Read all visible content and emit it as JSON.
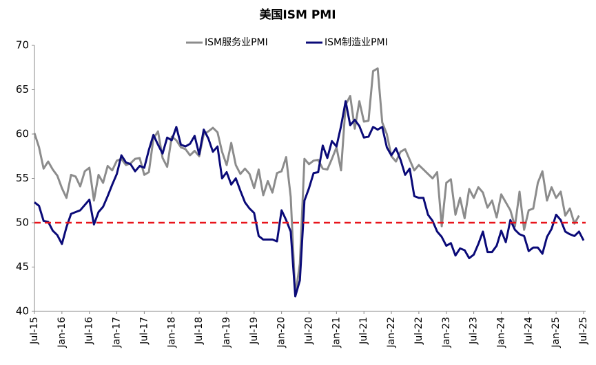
{
  "chart_data": {
    "type": "line",
    "title": "美国ISM PMI",
    "categories": [
      "Jul-15",
      null,
      null,
      null,
      null,
      null,
      "Jan-16",
      null,
      null,
      null,
      null,
      null,
      "Jul-16",
      null,
      null,
      null,
      null,
      null,
      "Jan-17",
      null,
      null,
      null,
      null,
      null,
      "Jul-17",
      null,
      null,
      null,
      null,
      null,
      "Jan-18",
      null,
      null,
      null,
      null,
      null,
      "Jul-18",
      null,
      null,
      null,
      null,
      null,
      "Jan-19",
      null,
      null,
      null,
      null,
      null,
      "Jul-19",
      null,
      null,
      null,
      null,
      null,
      "Jan-20",
      null,
      null,
      null,
      null,
      null,
      "Jul-20",
      null,
      null,
      null,
      null,
      null,
      "Jan-21",
      null,
      null,
      null,
      null,
      null,
      "Jul-21",
      null,
      null,
      null,
      null,
      null,
      "Jan-22",
      null,
      null,
      null,
      null,
      null,
      "Jul-22",
      null,
      null,
      null,
      null,
      null,
      "Jan-23",
      null,
      null,
      null,
      null,
      null,
      "Jul-23",
      null,
      null,
      null,
      null,
      null,
      "Jan-24",
      null,
      null,
      null,
      null,
      null,
      "Jul-24",
      null,
      null,
      null,
      null,
      null,
      "Jan-25",
      null,
      null,
      null,
      null,
      null,
      "Jul-25"
    ],
    "series": [
      {
        "name": "ISM服务业PMI",
        "color": "#8c8c8c",
        "values": [
          60.1,
          58.5,
          56.1,
          56.9,
          56.0,
          55.3,
          53.9,
          52.8,
          55.4,
          55.2,
          54.1,
          55.8,
          56.2,
          52.5,
          55.4,
          54.5,
          56.4,
          55.9,
          57.0,
          57.2,
          56.5,
          56.7,
          57.2,
          57.3,
          55.4,
          55.7,
          59.5,
          60.3,
          57.3,
          56.3,
          59.7,
          59.3,
          58.5,
          58.3,
          57.6,
          58.1,
          57.5,
          60.0,
          60.3,
          60.7,
          60.2,
          58.0,
          56.5,
          59.0,
          56.5,
          55.5,
          56.1,
          55.5,
          53.9,
          56.0,
          53.1,
          54.7,
          53.4,
          55.6,
          55.8,
          57.4,
          52.9,
          41.8,
          45.4,
          57.2,
          56.6,
          57.0,
          57.1,
          56.1,
          56.0,
          57.2,
          58.5,
          55.9,
          63.3,
          64.3,
          60.6,
          63.7,
          61.4,
          61.5,
          67.1,
          67.4,
          61.3,
          60.0,
          57.5,
          56.9,
          58.0,
          58.3,
          57.1,
          55.9,
          56.5,
          56.0,
          55.5,
          55.0,
          55.7,
          49.6,
          54.5,
          54.9,
          50.9,
          52.8,
          50.5,
          53.8,
          52.8,
          54.0,
          53.4,
          51.7,
          52.5,
          50.6,
          53.2,
          52.3,
          51.4,
          49.6,
          53.5,
          49.2,
          51.4,
          51.6,
          54.5,
          55.8,
          52.5,
          54.0,
          52.8,
          53.5,
          50.8,
          51.6,
          49.9,
          50.8,
          null
        ]
      },
      {
        "name": "ISM制造业PMI",
        "color": "#0a0a78",
        "values": [
          52.3,
          51.9,
          50.2,
          50.1,
          49.1,
          48.6,
          47.6,
          49.5,
          51.0,
          51.2,
          51.4,
          52.0,
          52.6,
          49.8,
          51.2,
          51.8,
          53.0,
          54.3,
          55.5,
          57.6,
          56.8,
          56.6,
          55.8,
          56.4,
          56.2,
          58.2,
          59.9,
          58.8,
          57.8,
          59.6,
          59.3,
          60.8,
          58.8,
          58.6,
          58.9,
          59.8,
          57.7,
          60.5,
          59.5,
          58.0,
          58.6,
          55.0,
          55.7,
          54.3,
          55.0,
          53.6,
          52.3,
          51.6,
          51.1,
          48.5,
          48.1,
          48.1,
          48.1,
          47.9,
          51.4,
          50.3,
          49.0,
          41.7,
          43.5,
          52.5,
          53.9,
          55.6,
          55.7,
          58.7,
          57.3,
          59.2,
          58.6,
          60.9,
          63.7,
          61.0,
          61.6,
          60.9,
          59.6,
          59.7,
          60.8,
          60.5,
          60.8,
          58.5,
          57.6,
          58.4,
          57.1,
          55.4,
          56.1,
          53.0,
          52.8,
          52.8,
          50.9,
          50.2,
          49.0,
          48.4,
          47.4,
          47.7,
          46.3,
          47.1,
          46.9,
          46.0,
          46.4,
          47.6,
          49.0,
          46.7,
          46.7,
          47.4,
          49.1,
          47.8,
          50.3,
          49.2,
          48.7,
          48.5,
          46.8,
          47.2,
          47.2,
          46.5,
          48.4,
          49.3,
          50.9,
          50.3,
          49.0,
          48.7,
          48.5,
          49.0,
          48.0
        ]
      }
    ],
    "hline": {
      "value": 50,
      "color": "#e8141b"
    },
    "ylim": [
      40,
      70
    ],
    "yticks": [
      40,
      45,
      50,
      55,
      60,
      65,
      70
    ]
  }
}
